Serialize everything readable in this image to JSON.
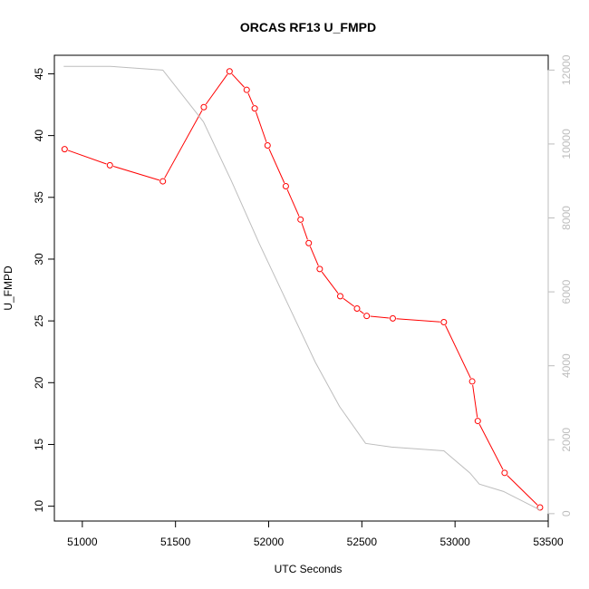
{
  "chart_data": {
    "type": "line",
    "title": "ORCAS RF13 U_FMPD",
    "xlabel": "UTC Seconds",
    "ylabel": "U_FMPD",
    "xlim": [
      50850,
      53500
    ],
    "ylim": [
      8.8,
      46.5
    ],
    "y2lim": [
      -200,
      12400
    ],
    "x_ticks": [
      51000,
      51500,
      52000,
      52500,
      53000,
      53500
    ],
    "y_ticks": [
      10,
      15,
      20,
      25,
      30,
      35,
      40,
      45
    ],
    "y2_ticks": [
      0,
      2000,
      4000,
      6000,
      8000,
      10000,
      12000
    ],
    "grid": false,
    "series": [
      {
        "axis": "left",
        "color": "#ff0000",
        "style": "line+points",
        "x": [
          50905,
          51148,
          51432,
          51652,
          51790,
          51882,
          51925,
          51994,
          52092,
          52171,
          52215,
          52274,
          52384,
          52474,
          52526,
          52666,
          52940,
          53092,
          53122,
          53266,
          53456
        ],
        "y": [
          38.9,
          37.6,
          36.3,
          42.3,
          45.2,
          43.7,
          42.2,
          39.2,
          35.9,
          33.2,
          31.3,
          29.2,
          27.0,
          26.0,
          25.4,
          25.2,
          24.9,
          20.1,
          16.9,
          12.7,
          9.9
        ]
      },
      {
        "axis": "right",
        "color": "#bdbdbd",
        "style": "line",
        "x": [
          50900,
          51150,
          51432,
          51650,
          51800,
          51950,
          52100,
          52250,
          52380,
          52520,
          52660,
          52940,
          53080,
          53130,
          53260,
          53456
        ],
        "y": [
          12100,
          12100,
          12000,
          10600,
          9000,
          7300,
          5700,
          4100,
          2900,
          1900,
          1800,
          1700,
          1100,
          800,
          600,
          100
        ]
      }
    ]
  }
}
